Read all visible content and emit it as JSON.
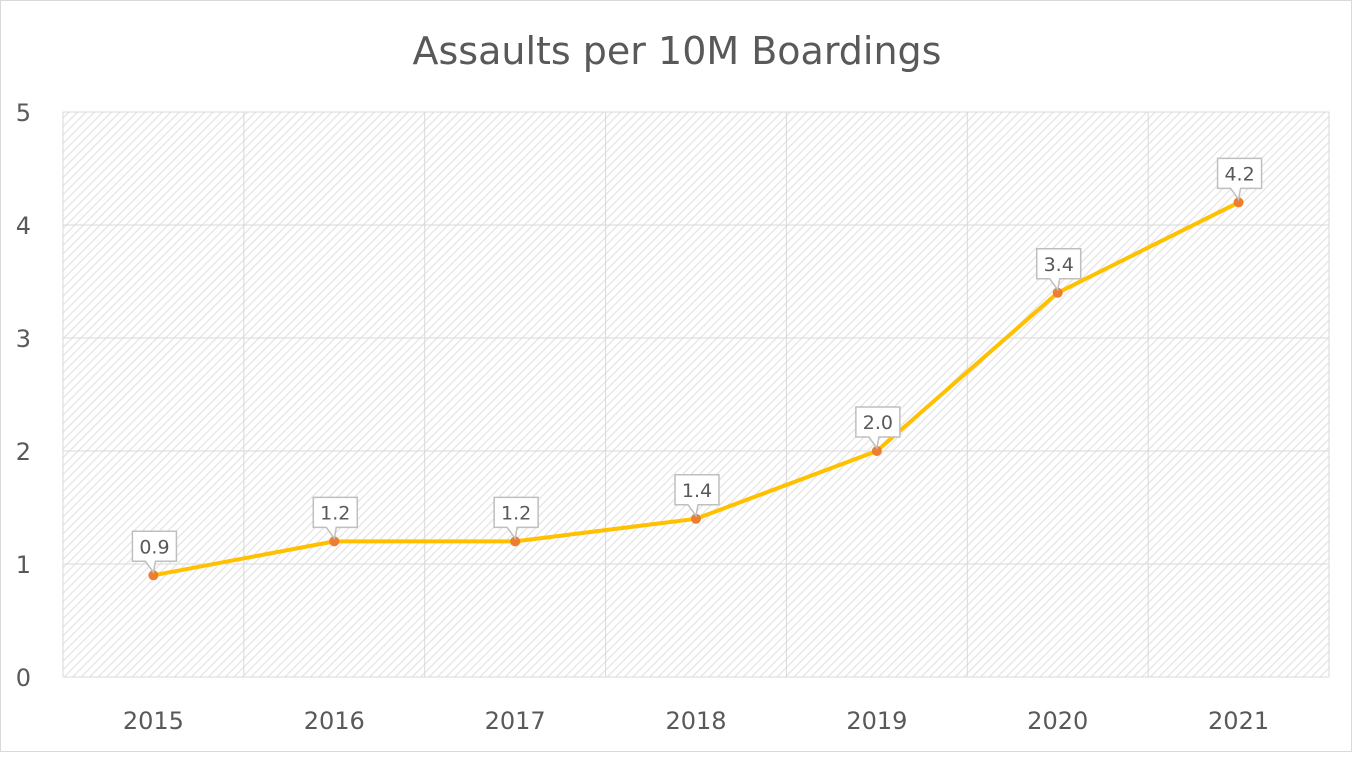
{
  "chart_data": {
    "type": "line",
    "title": "Assaults per 10M Boardings",
    "xlabel": "",
    "ylabel": "",
    "categories": [
      "2015",
      "2016",
      "2017",
      "2018",
      "2019",
      "2020",
      "2021"
    ],
    "series": [
      {
        "name": "Assaults per 10M Boardings",
        "values": [
          0.9,
          1.2,
          1.2,
          1.4,
          2.0,
          3.4,
          4.2
        ],
        "labels": [
          "0.9",
          "1.2",
          "1.2",
          "1.4",
          "2.0",
          "3.4",
          "4.2"
        ]
      }
    ],
    "ylim": [
      0,
      5
    ],
    "yticks": [
      "0",
      "1",
      "2",
      "3",
      "4",
      "5"
    ],
    "grid": true,
    "legend": "none",
    "colors": {
      "line": "#FFC000",
      "marker": "#ED7D31",
      "grid": "#d9d9d9",
      "text": "#595959"
    }
  }
}
